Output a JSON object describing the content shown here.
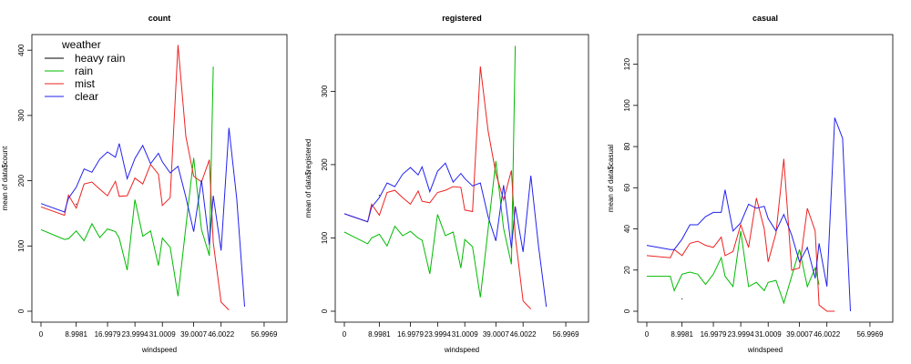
{
  "chart_data": [
    {
      "type": "line",
      "title": "count",
      "xlabel": "windspeed",
      "ylabel": "mean of  data$count",
      "x": [
        0,
        6.0032,
        7.0015,
        8.9981,
        11.0014,
        12.998,
        15.0013,
        16.9979,
        19.0012,
        19.9995,
        22.0028,
        23.9994,
        26.0027,
        27.9993,
        30.0026,
        31.0009,
        32.9975,
        35.0008,
        36.9974,
        39.0007,
        40.9973,
        43.0006,
        43.9989,
        46.0022,
        47.9988,
        50.0021,
        51.9987,
        55.9986,
        56.9969
      ],
      "xticks": [
        "0",
        "8.9981",
        "16.9979",
        "23.9994",
        "31.0009",
        "39.0007",
        "46.0022",
        "56.9969"
      ],
      "yticks": [
        "0",
        "100",
        "200",
        "300",
        "400"
      ],
      "ylim": [
        0,
        410
      ],
      "legend": {
        "title": "weather",
        "placement": "top-left"
      },
      "series": [
        {
          "name": "heavy rain",
          "color": "#000000",
          "points": [
            [
              8.9981,
              164
            ]
          ]
        },
        {
          "name": "rain",
          "color": "#00bb00",
          "points": [
            [
              0,
              125
            ],
            [
              6.0032,
              110
            ],
            [
              7.0015,
              111
            ],
            [
              8.9981,
              123
            ],
            [
              11.0014,
              108
            ],
            [
              12.998,
              134
            ],
            [
              15.0013,
              113
            ],
            [
              16.9979,
              126
            ],
            [
              19.0012,
              122
            ],
            [
              19.9995,
              112
            ],
            [
              22.0028,
              63
            ],
            [
              23.9994,
              171
            ],
            [
              26.0027,
              115
            ],
            [
              27.9993,
              123
            ],
            [
              30.0026,
              70
            ],
            [
              31.0009,
              112
            ],
            [
              32.9975,
              98
            ],
            [
              35.0008,
              23
            ],
            [
              39.0007,
              235
            ],
            [
              40.9973,
              125
            ],
            [
              43.0006,
              85
            ],
            [
              43.9989,
              375
            ]
          ]
        },
        {
          "name": "mist",
          "color": "#ee2222",
          "points": [
            [
              0,
              160
            ],
            [
              6.0032,
              147
            ],
            [
              7.0015,
              178
            ],
            [
              8.9981,
              158
            ],
            [
              11.0014,
              195
            ],
            [
              12.998,
              198
            ],
            [
              15.0013,
              187
            ],
            [
              16.9979,
              177
            ],
            [
              19.0012,
              199
            ],
            [
              19.9995,
              176
            ],
            [
              22.0028,
              177
            ],
            [
              23.9994,
              204
            ],
            [
              26.0027,
              195
            ],
            [
              27.9993,
              225
            ],
            [
              30.0026,
              210
            ],
            [
              31.0009,
              162
            ],
            [
              32.9975,
              174
            ],
            [
              35.0008,
              408
            ],
            [
              36.9974,
              268
            ],
            [
              39.0007,
              207
            ],
            [
              40.9973,
              198
            ],
            [
              43.0006,
              232
            ],
            [
              43.9989,
              105
            ],
            [
              46.0022,
              14
            ],
            [
              47.9988,
              2
            ]
          ]
        },
        {
          "name": "clear",
          "color": "#2222ee",
          "points": [
            [
              0,
              165
            ],
            [
              6.0032,
              152
            ],
            [
              7.0015,
              173
            ],
            [
              8.9981,
              190
            ],
            [
              11.0014,
              218
            ],
            [
              12.998,
              213
            ],
            [
              15.0013,
              233
            ],
            [
              16.9979,
              244
            ],
            [
              19.0012,
              236
            ],
            [
              19.9995,
              257
            ],
            [
              22.0028,
              203
            ],
            [
              23.9994,
              234
            ],
            [
              26.0027,
              254
            ],
            [
              27.9993,
              226
            ],
            [
              30.0026,
              242
            ],
            [
              31.0009,
              229
            ],
            [
              32.9975,
              212
            ],
            [
              35.0008,
              222
            ],
            [
              36.9974,
              175
            ],
            [
              39.0007,
              122
            ],
            [
              40.9973,
              201
            ],
            [
              43.0006,
              102
            ],
            [
              43.9989,
              177
            ],
            [
              46.0022,
              93
            ],
            [
              47.9988,
              281
            ],
            [
              50.0021,
              172
            ],
            [
              51.9987,
              7
            ]
          ]
        }
      ]
    },
    {
      "type": "line",
      "title": "registered",
      "xlabel": "windspeed",
      "ylabel": "mean of  data$registered",
      "x": [
        0,
        6.0032,
        7.0015,
        8.9981,
        11.0014,
        12.998,
        15.0013,
        16.9979,
        19.0012,
        19.9995,
        22.0028,
        23.9994,
        26.0027,
        27.9993,
        30.0026,
        31.0009,
        32.9975,
        35.0008,
        36.9974,
        39.0007,
        40.9973,
        43.0006,
        43.9989,
        46.0022,
        47.9988,
        50.0021,
        51.9987,
        55.9986,
        56.9969
      ],
      "xticks": [
        "0",
        "8.9981",
        "16.9979",
        "23.9994",
        "31.0009",
        "39.0007",
        "46.0022",
        "56.9969"
      ],
      "yticks": [
        "0",
        "100",
        "200",
        "300"
      ],
      "ylim": [
        0,
        365
      ],
      "series": [
        {
          "name": "heavy rain",
          "color": "#000000",
          "points": [
            [
              8.9981,
              158
            ]
          ]
        },
        {
          "name": "rain",
          "color": "#00bb00",
          "points": [
            [
              0,
              108
            ],
            [
              6.0032,
              92
            ],
            [
              7.0015,
              100
            ],
            [
              8.9981,
              105
            ],
            [
              11.0014,
              89
            ],
            [
              12.998,
              116
            ],
            [
              15.0013,
              103
            ],
            [
              16.9979,
              109
            ],
            [
              19.0012,
              100
            ],
            [
              19.9995,
              97
            ],
            [
              22.0028,
              51
            ],
            [
              23.9994,
              132
            ],
            [
              26.0027,
              103
            ],
            [
              27.9993,
              108
            ],
            [
              30.0026,
              59
            ],
            [
              31.0009,
              98
            ],
            [
              32.9975,
              88
            ],
            [
              35.0008,
              19
            ],
            [
              39.0007,
              205
            ],
            [
              40.9973,
              113
            ],
            [
              43.0006,
              64
            ],
            [
              43.9989,
              362
            ]
          ]
        },
        {
          "name": "mist",
          "color": "#ee2222",
          "points": [
            [
              0,
              133
            ],
            [
              6.0032,
              122
            ],
            [
              7.0015,
              146
            ],
            [
              8.9981,
              131
            ],
            [
              11.0014,
              162
            ],
            [
              12.998,
              165
            ],
            [
              15.0013,
              155
            ],
            [
              16.9979,
              146
            ],
            [
              19.0012,
              164
            ],
            [
              19.9995,
              150
            ],
            [
              22.0028,
              148
            ],
            [
              23.9994,
              162
            ],
            [
              26.0027,
              165
            ],
            [
              27.9993,
              170
            ],
            [
              30.0026,
              169
            ],
            [
              31.0009,
              138
            ],
            [
              32.9975,
              136
            ],
            [
              35.0008,
              334
            ],
            [
              36.9974,
              246
            ],
            [
              39.0007,
              188
            ],
            [
              40.9973,
              152
            ],
            [
              43.0006,
              192
            ],
            [
              43.9989,
              102
            ],
            [
              46.0022,
              14
            ],
            [
              47.9988,
              3
            ]
          ]
        },
        {
          "name": "clear",
          "color": "#2222ee",
          "points": [
            [
              0,
              133
            ],
            [
              6.0032,
              122
            ],
            [
              7.0015,
              142
            ],
            [
              8.9981,
              155
            ],
            [
              11.0014,
              175
            ],
            [
              12.998,
              170
            ],
            [
              15.0013,
              187
            ],
            [
              16.9979,
              196
            ],
            [
              19.0012,
              186
            ],
            [
              19.9995,
              197
            ],
            [
              22.0028,
              163
            ],
            [
              23.9994,
              191
            ],
            [
              26.0027,
              202
            ],
            [
              27.9993,
              176
            ],
            [
              30.0026,
              188
            ],
            [
              31.0009,
              181
            ],
            [
              32.9975,
              171
            ],
            [
              35.0008,
              175
            ],
            [
              36.9974,
              129
            ],
            [
              39.0007,
              96
            ],
            [
              40.9973,
              172
            ],
            [
              43.0006,
              86
            ],
            [
              43.9989,
              143
            ],
            [
              46.0022,
              81
            ],
            [
              47.9988,
              185
            ],
            [
              50.0021,
              88
            ],
            [
              51.9987,
              6
            ]
          ]
        }
      ]
    },
    {
      "type": "line",
      "title": "casual",
      "xlabel": "windspeed",
      "ylabel": "mean of  data$casual",
      "x": [
        0,
        6.0032,
        7.0015,
        8.9981,
        11.0014,
        12.998,
        15.0013,
        16.9979,
        19.0012,
        19.9995,
        22.0028,
        23.9994,
        26.0027,
        27.9993,
        30.0026,
        31.0009,
        32.9975,
        35.0008,
        36.9974,
        39.0007,
        40.9973,
        43.0006,
        43.9989,
        46.0022,
        47.9988,
        50.0021,
        51.9987,
        55.9986,
        56.9969
      ],
      "xticks": [
        "0",
        "8.9981",
        "16.9979",
        "23.9994",
        "31.0009",
        "39.0007",
        "46.0022",
        "56.9969"
      ],
      "yticks": [
        "0",
        "20",
        "40",
        "60",
        "80",
        "100",
        "120"
      ],
      "ylim": [
        0,
        130
      ],
      "series": [
        {
          "name": "heavy rain",
          "color": "#000000",
          "points": [
            [
              8.9981,
              6
            ]
          ]
        },
        {
          "name": "rain",
          "color": "#00bb00",
          "points": [
            [
              0,
              17
            ],
            [
              6.0032,
              17
            ],
            [
              7.0015,
              10
            ],
            [
              8.9981,
              18
            ],
            [
              11.0014,
              19
            ],
            [
              12.998,
              18
            ],
            [
              15.0013,
              13
            ],
            [
              16.9979,
              18
            ],
            [
              19.0012,
              26
            ],
            [
              19.9995,
              17
            ],
            [
              22.0028,
              12
            ],
            [
              23.9994,
              39
            ],
            [
              26.0027,
              12
            ],
            [
              27.9993,
              14
            ],
            [
              30.0026,
              10
            ],
            [
              31.0009,
              14
            ],
            [
              32.9975,
              15
            ],
            [
              35.0008,
              4
            ],
            [
              39.0007,
              30
            ],
            [
              40.9973,
              12
            ],
            [
              43.0006,
              21
            ],
            [
              43.9989,
              13
            ]
          ]
        },
        {
          "name": "mist",
          "color": "#ee2222",
          "points": [
            [
              0,
              27
            ],
            [
              6.0032,
              26
            ],
            [
              7.0015,
              30
            ],
            [
              8.9981,
              27
            ],
            [
              11.0014,
              33
            ],
            [
              12.998,
              34
            ],
            [
              15.0013,
              32
            ],
            [
              16.9979,
              31
            ],
            [
              19.0012,
              36
            ],
            [
              19.9995,
              27
            ],
            [
              22.0028,
              29
            ],
            [
              23.9994,
              42
            ],
            [
              26.0027,
              31
            ],
            [
              27.9993,
              55
            ],
            [
              30.0026,
              40
            ],
            [
              31.0009,
              24
            ],
            [
              32.9975,
              38
            ],
            [
              35.0008,
              74
            ],
            [
              36.9974,
              20
            ],
            [
              39.0007,
              21
            ],
            [
              40.9973,
              50
            ],
            [
              43.0006,
              39
            ],
            [
              43.9989,
              3
            ],
            [
              46.0022,
              0
            ],
            [
              47.9988,
              0
            ]
          ]
        },
        {
          "name": "clear",
          "color": "#2222ee",
          "points": [
            [
              0,
              32
            ],
            [
              6.0032,
              30
            ],
            [
              7.0015,
              30
            ],
            [
              8.9981,
              35
            ],
            [
              11.0014,
              42
            ],
            [
              12.998,
              42
            ],
            [
              15.0013,
              46
            ],
            [
              16.9979,
              48
            ],
            [
              19.0012,
              48
            ],
            [
              19.9995,
              59
            ],
            [
              22.0028,
              39
            ],
            [
              23.9994,
              43
            ],
            [
              26.0027,
              52
            ],
            [
              27.9993,
              50
            ],
            [
              30.0026,
              51
            ],
            [
              31.0009,
              45
            ],
            [
              32.9975,
              39
            ],
            [
              35.0008,
              47
            ],
            [
              36.9974,
              37
            ],
            [
              39.0007,
              24
            ],
            [
              40.9973,
              31
            ],
            [
              43.0006,
              16
            ],
            [
              43.9989,
              33
            ],
            [
              46.0022,
              12
            ],
            [
              47.9988,
              94
            ],
            [
              50.0021,
              84
            ],
            [
              51.9987,
              0
            ]
          ]
        }
      ]
    }
  ]
}
